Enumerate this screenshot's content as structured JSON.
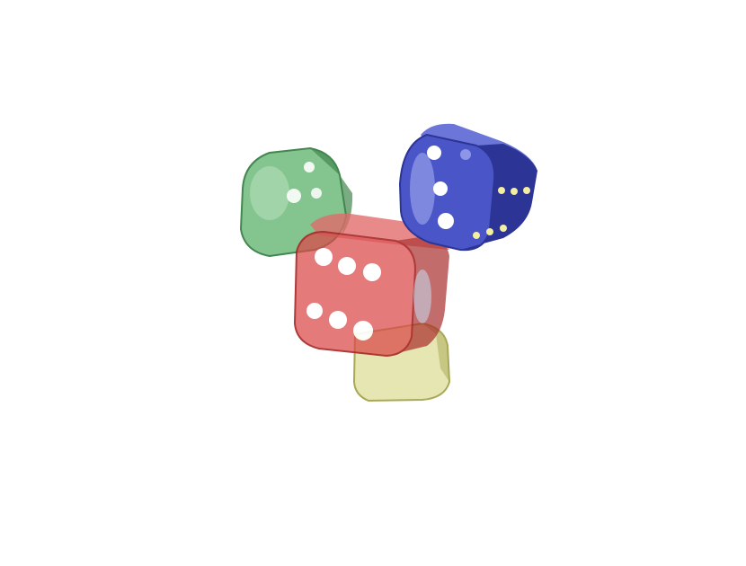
{
  "scene": {
    "background": "#ffffff",
    "description_free": true
  },
  "dice": [
    {
      "name": "green-die",
      "color": "#4aa85a",
      "dark": "#2f7a3c",
      "light": "#bfe6c4",
      "front_face_pips": 2,
      "side_face_pips": 2
    },
    {
      "name": "yellow-die",
      "color": "#c8c85a",
      "dark": "#9a9a3a",
      "light": "#eeeebb",
      "front_face_pips": 0,
      "side_face_pips": 0
    },
    {
      "name": "red-die",
      "color": "#d94a4a",
      "dark": "#a82a2a",
      "light": "#f2b0b0",
      "front_face_pips": 6,
      "side_face_pips": 0
    },
    {
      "name": "blue-die",
      "color": "#4a56c8",
      "dark": "#2c3596",
      "light": "#aab2f0",
      "front_face_pips": 3,
      "side_face_pips": 6,
      "pip_color": "#ffffff",
      "side_pip_color": "#f3eea0"
    }
  ]
}
